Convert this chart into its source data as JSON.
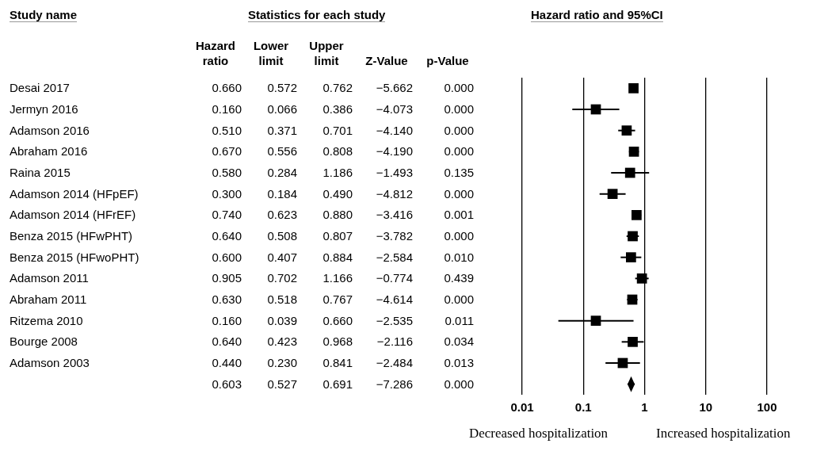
{
  "chart_data": [
    {
      "type": "other",
      "title": "Statistics for each study",
      "ylabel": "Study name",
      "categories": [
        "Hazard ratio",
        "Lower limit",
        "Upper limit",
        "Z-Value",
        "p-Value"
      ],
      "y_categories": [
        "Desai 2017",
        "Jermyn 2016",
        "Adamson 2016",
        "Abraham 2016",
        "Raina 2015",
        "Adamson 2014 (HFpEF)",
        "Adamson 2014 (HFrEF)",
        "Benza 2015 (HFwPHT)",
        "Benza 2015 (HFwoPHT)",
        "Adamson 2011",
        "Abraham 2011",
        "Ritzema 2010",
        "Bourge 2008",
        "Adamson 2003",
        null
      ],
      "cell_labels": [
        [
          "0.660",
          "0.572",
          "0.762",
          "−5.662",
          "0.000"
        ],
        [
          "0.160",
          "0.066",
          "0.386",
          "−4.073",
          "0.000"
        ],
        [
          "0.510",
          "0.371",
          "0.701",
          "−4.140",
          "0.000"
        ],
        [
          "0.670",
          "0.556",
          "0.808",
          "−4.190",
          "0.000"
        ],
        [
          "0.580",
          "0.284",
          "1.186",
          "−1.493",
          "0.135"
        ],
        [
          "0.300",
          "0.184",
          "0.490",
          "−4.812",
          "0.000"
        ],
        [
          "0.740",
          "0.623",
          "0.880",
          "−3.416",
          "0.001"
        ],
        [
          "0.640",
          "0.508",
          "0.807",
          "−3.782",
          "0.000"
        ],
        [
          "0.600",
          "0.407",
          "0.884",
          "−2.584",
          "0.010"
        ],
        [
          "0.905",
          "0.702",
          "1.166",
          "−0.774",
          "0.439"
        ],
        [
          "0.630",
          "0.518",
          "0.767",
          "−4.614",
          "0.000"
        ],
        [
          "0.160",
          "0.039",
          "0.660",
          "−2.535",
          "0.011"
        ],
        [
          "0.640",
          "0.423",
          "0.968",
          "−2.116",
          "0.034"
        ],
        [
          "0.440",
          "0.230",
          "0.841",
          "−2.484",
          "0.013"
        ],
        [
          "0.603",
          "0.527",
          "0.691",
          "−7.286",
          "0.000"
        ]
      ]
    },
    {
      "type": "scatter",
      "title": "Hazard ratio and 95%CI",
      "orientation": "horizontal",
      "log": "x",
      "grid": "x",
      "xlim": [
        0.01,
        100
      ],
      "xticks": [
        0.01,
        0.1,
        1,
        10,
        100
      ],
      "categories": [
        null,
        null,
        null,
        null,
        null,
        null,
        null,
        null,
        null,
        null,
        null,
        null,
        null,
        null,
        null
      ],
      "series": [
        {
          "color": "#000000",
          "marker": "square",
          "values": [
            0.66,
            0.16,
            0.51,
            0.67,
            0.58,
            0.3,
            0.74,
            0.64,
            0.6,
            0.905,
            0.63,
            0.16,
            0.64,
            0.44,
            null
          ],
          "errors": [
            [
              0.572,
              0.762
            ],
            [
              0.066,
              0.386
            ],
            [
              0.371,
              0.701
            ],
            [
              0.556,
              0.808
            ],
            [
              0.284,
              1.186
            ],
            [
              0.184,
              0.49
            ],
            [
              0.623,
              0.88
            ],
            [
              0.508,
              0.807
            ],
            [
              0.407,
              0.884
            ],
            [
              0.702,
              1.166
            ],
            [
              0.518,
              0.767
            ],
            [
              0.039,
              0.66
            ],
            [
              0.423,
              0.968
            ],
            [
              0.23,
              0.841
            ],
            null
          ]
        },
        {
          "color": "#000000",
          "marker": "diamond",
          "values": [
            null,
            null,
            null,
            null,
            null,
            null,
            null,
            null,
            null,
            null,
            null,
            null,
            null,
            null,
            0.603
          ],
          "errors": [
            null,
            null,
            null,
            null,
            null,
            null,
            null,
            null,
            null,
            null,
            null,
            null,
            null,
            null,
            [
              0.527,
              0.691
            ]
          ]
        }
      ],
      "annotations": [
        "Decreased hospitalization",
        "Increased hospitalization"
      ]
    }
  ]
}
